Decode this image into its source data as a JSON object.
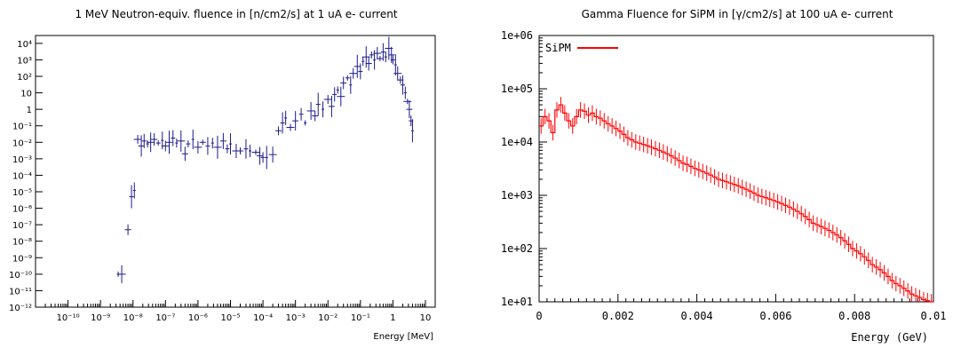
{
  "chart_data": [
    {
      "type": "scatter",
      "title": "1 MeV Neutron-equiv. fluence in [n/cm2/s] at 1 uA e- current",
      "xlabel": "Energy [MeV]",
      "ylabel": "",
      "xscale": "log",
      "yscale": "log",
      "xlim": [
        1e-11,
        20
      ],
      "ylim": [
        1e-12,
        30000
      ],
      "x_tick_labels": [
        "10⁻¹⁰",
        "10⁻⁹",
        "10⁻⁸",
        "10⁻⁷",
        "10⁻⁶",
        "10⁻⁵",
        "10⁻⁴",
        "10⁻³",
        "10⁻²",
        "10⁻¹",
        "1",
        "10"
      ],
      "y_tick_labels": [
        "10⁻¹²",
        "10⁻¹¹",
        "10⁻¹⁰",
        "10⁻⁹",
        "10⁻⁸",
        "10⁻⁷",
        "10⁻⁶",
        "10⁻⁵",
        "10⁻⁴",
        "10⁻³",
        "10⁻²",
        "10⁻¹",
        "1",
        "10",
        "10²",
        "10³",
        "10⁴"
      ],
      "grid": false,
      "color": "#1a1a8c",
      "points": [
        {
          "x": 3.5e-09,
          "y": 1e-10
        },
        {
          "x": 4.5e-09,
          "y": 1e-10
        },
        {
          "x": 7e-09,
          "y": 5e-08
        },
        {
          "x": 9e-09,
          "y": 5e-06
        },
        {
          "x": 1.1e-08,
          "y": 1.2e-05
        },
        {
          "x": 1.4e-08,
          "y": 0.015
        },
        {
          "x": 1.8e-08,
          "y": 0.006
        },
        {
          "x": 2.2e-08,
          "y": 0.012
        },
        {
          "x": 2.8e-08,
          "y": 0.008
        },
        {
          "x": 3.5e-08,
          "y": 0.01
        },
        {
          "x": 4.5e-08,
          "y": 0.015
        },
        {
          "x": 6e-08,
          "y": 0.009
        },
        {
          "x": 8e-08,
          "y": 0.013
        },
        {
          "x": 1e-07,
          "y": 0.006
        },
        {
          "x": 1.3e-07,
          "y": 0.01
        },
        {
          "x": 1.7e-07,
          "y": 0.018
        },
        {
          "x": 2.2e-07,
          "y": 0.009
        },
        {
          "x": 3e-07,
          "y": 0.012
        },
        {
          "x": 4e-07,
          "y": 0.002
        },
        {
          "x": 5e-07,
          "y": 0.008
        },
        {
          "x": 7e-07,
          "y": 0.015
        },
        {
          "x": 1e-06,
          "y": 0.005
        },
        {
          "x": 1.4e-06,
          "y": 0.01
        },
        {
          "x": 2e-06,
          "y": 0.006
        },
        {
          "x": 2.8e-06,
          "y": 0.009
        },
        {
          "x": 4e-06,
          "y": 0.005
        },
        {
          "x": 6e-06,
          "y": 0.012
        },
        {
          "x": 8e-06,
          "y": 0.004
        },
        {
          "x": 1e-05,
          "y": 0.008
        },
        {
          "x": 1.5e-05,
          "y": 0.003
        },
        {
          "x": 2e-05,
          "y": 0.003
        },
        {
          "x": 3e-05,
          "y": 0.004
        },
        {
          "x": 4e-05,
          "y": 0.003
        },
        {
          "x": 6e-05,
          "y": 0.0025
        },
        {
          "x": 8e-05,
          "y": 0.0015
        },
        {
          "x": 0.0001,
          "y": 0.0012
        },
        {
          "x": 0.00013,
          "y": 0.0012
        },
        {
          "x": 0.0002,
          "y": 0.0018
        },
        {
          "x": 0.0003,
          "y": 0.05
        },
        {
          "x": 0.0004,
          "y": 0.15
        },
        {
          "x": 0.0005,
          "y": 0.3
        },
        {
          "x": 0.0007,
          "y": 0.08
        },
        {
          "x": 0.001,
          "y": 0.2
        },
        {
          "x": 0.0015,
          "y": 0.5
        },
        {
          "x": 0.002,
          "y": 0.15
        },
        {
          "x": 0.003,
          "y": 0.8
        },
        {
          "x": 0.004,
          "y": 0.4
        },
        {
          "x": 0.005,
          "y": 2
        },
        {
          "x": 0.007,
          "y": 1
        },
        {
          "x": 0.01,
          "y": 4
        },
        {
          "x": 0.013,
          "y": 1.5
        },
        {
          "x": 0.016,
          "y": 8
        },
        {
          "x": 0.02,
          "y": 15
        },
        {
          "x": 0.025,
          "y": 6
        },
        {
          "x": 0.03,
          "y": 40
        },
        {
          "x": 0.04,
          "y": 80
        },
        {
          "x": 0.05,
          "y": 30
        },
        {
          "x": 0.06,
          "y": 150
        },
        {
          "x": 0.08,
          "y": 400
        },
        {
          "x": 0.1,
          "y": 200
        },
        {
          "x": 0.12,
          "y": 800
        },
        {
          "x": 0.15,
          "y": 1500
        },
        {
          "x": 0.18,
          "y": 600
        },
        {
          "x": 0.22,
          "y": 2000
        },
        {
          "x": 0.27,
          "y": 1000
        },
        {
          "x": 0.33,
          "y": 2500
        },
        {
          "x": 0.4,
          "y": 1200
        },
        {
          "x": 0.5,
          "y": 3000
        },
        {
          "x": 0.6,
          "y": 1500
        },
        {
          "x": 0.75,
          "y": 5000
        },
        {
          "x": 0.9,
          "y": 2000
        },
        {
          "x": 1.0,
          "y": 1000
        },
        {
          "x": 1.2,
          "y": 500
        },
        {
          "x": 1.4,
          "y": 150
        },
        {
          "x": 1.7,
          "y": 60
        },
        {
          "x": 2.0,
          "y": 30
        },
        {
          "x": 2.4,
          "y": 10
        },
        {
          "x": 2.8,
          "y": 3
        },
        {
          "x": 3.2,
          "y": 1
        },
        {
          "x": 3.6,
          "y": 0.2
        },
        {
          "x": 4.0,
          "y": 0.05
        }
      ]
    },
    {
      "type": "line",
      "title": "Gamma Fluence for SiPM in [γ/cm2/s] at 100 uA e- current",
      "xlabel": "Energy (GeV)",
      "ylabel": "",
      "yscale": "log",
      "xlim": [
        0,
        0.01
      ],
      "ylim": [
        10,
        1000000
      ],
      "x_tick_labels": [
        "0",
        "0.002",
        "0.004",
        "0.006",
        "0.008",
        "0.01"
      ],
      "y_tick_labels": [
        "1e+01",
        "1e+02",
        "1e+03",
        "1e+04",
        "1e+05",
        "1e+06"
      ],
      "grid": false,
      "legend": {
        "position": "top-left",
        "entries": [
          "SiPM"
        ]
      },
      "color": "#ff0000",
      "series": [
        {
          "name": "SiPM",
          "bin_width": 0.0001,
          "x_start": 0.0,
          "values": [
            20000,
            30000,
            25000,
            15000,
            40000,
            50000,
            35000,
            25000,
            20000,
            30000,
            40000,
            38000,
            32000,
            35000,
            30000,
            28000,
            25000,
            22000,
            20000,
            18000,
            16000,
            14000,
            12000,
            11000,
            10000,
            9500,
            9000,
            8500,
            8000,
            7500,
            7000,
            6500,
            6000,
            5500,
            5000,
            4500,
            4000,
            3800,
            3500,
            3200,
            3000,
            2800,
            2600,
            2400,
            2200,
            2000,
            1900,
            1800,
            1700,
            1600,
            1500,
            1400,
            1300,
            1200,
            1100,
            1000,
            950,
            900,
            850,
            800,
            750,
            700,
            650,
            600,
            550,
            500,
            450,
            400,
            350,
            300,
            280,
            260,
            240,
            220,
            200,
            180,
            160,
            140,
            120,
            100,
            90,
            80,
            70,
            60,
            50,
            45,
            40,
            35,
            30,
            25,
            22,
            20,
            18,
            16,
            14,
            13,
            12,
            11,
            10.5,
            10
          ]
        }
      ]
    }
  ]
}
